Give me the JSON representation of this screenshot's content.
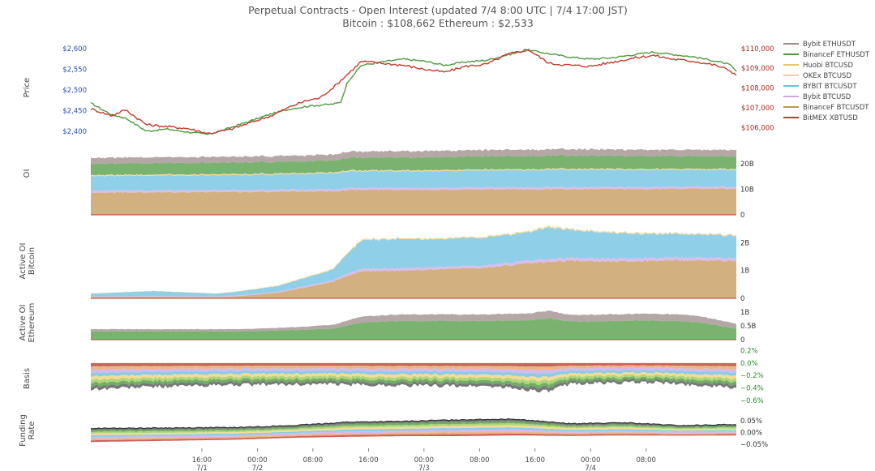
{
  "chart_data": {
    "type": "area",
    "title": "Perpetual Contracts - Open Interest   (updated   7/4 8:00 UTC   |   7/4 17:00 JST)",
    "subtitle": "Bitcoin : $108,662    Ethereum : $2,533",
    "x_ticks": [
      {
        "time": "16:00",
        "date": "7/1"
      },
      {
        "time": "00:00",
        "date": "7/2"
      },
      {
        "time": "08:00",
        "date": ""
      },
      {
        "time": "16:00",
        "date": ""
      },
      {
        "time": "00:00",
        "date": "7/3"
      },
      {
        "time": "08:00",
        "date": ""
      },
      {
        "time": "16:00",
        "date": ""
      },
      {
        "time": "00:00",
        "date": "7/4"
      },
      {
        "time": "08:00",
        "date": ""
      }
    ],
    "x_range_hours": [
      -21,
      72
    ],
    "legend": {
      "placement": "right",
      "entries": [
        {
          "name": "Bybit ETHUSDT",
          "color": "#9e8a8a"
        },
        {
          "name": "BinanceF ETHUSDT",
          "color": "#4e9a3f"
        },
        {
          "name": "Huobi BTCUSD",
          "color": "#e3c86a"
        },
        {
          "name": "OKEx BTCUSD",
          "color": "#f2d27a"
        },
        {
          "name": "BYBIT BTCUSDT",
          "color": "#6bbfe0"
        },
        {
          "name": "Bybit BTCUSD",
          "color": "#c9a8e6"
        },
        {
          "name": "BinanceF BTCUSDT",
          "color": "#c49656"
        },
        {
          "name": "BitMEX XBTUSD",
          "color": "#c23b2e"
        }
      ]
    },
    "panels": [
      {
        "id": "price",
        "ylabel": "Price",
        "left_axis": {
          "ticks": [
            "$2,400",
            "$2,450",
            "$2,500",
            "$2,550",
            "$2,600"
          ],
          "values": [
            2400,
            2450,
            2500,
            2550,
            2600
          ],
          "range": [
            2380,
            2620
          ],
          "color": "#2a4fb0"
        },
        "right_axis": {
          "ticks": [
            "$106,000",
            "$107,000",
            "$108,000",
            "$109,000",
            "$110,000"
          ],
          "values": [
            106000,
            107000,
            108000,
            109000,
            110000
          ],
          "range": [
            105400,
            110400
          ],
          "color": "#a32a1e"
        },
        "series": [
          {
            "name": "Ethereum",
            "color": "#4e9a3f",
            "axis": "left",
            "x": [
              -21,
              -18,
              -16,
              -13,
              -10,
              -7,
              -4,
              -1,
              2,
              5,
              8,
              11,
              14,
              15,
              16,
              18,
              21,
              24,
              27,
              30,
              33,
              36,
              39,
              42,
              45,
              48,
              51,
              54,
              57,
              60,
              63,
              66,
              69,
              71,
              72
            ],
            "y": [
              2468,
              2440,
              2432,
              2400,
              2405,
              2398,
              2392,
              2408,
              2425,
              2442,
              2455,
              2462,
              2466,
              2470,
              2520,
              2560,
              2568,
              2575,
              2570,
              2560,
              2568,
              2572,
              2585,
              2597,
              2588,
              2580,
              2575,
              2578,
              2585,
              2592,
              2586,
              2580,
              2570,
              2562,
              2545
            ]
          },
          {
            "name": "Bitcoin",
            "color": "#c23b2e",
            "axis": "right",
            "x": [
              -21,
              -18,
              -16,
              -13,
              -10,
              -7,
              -4,
              -1,
              2,
              5,
              8,
              10,
              12,
              14,
              16,
              18,
              21,
              24,
              27,
              30,
              33,
              36,
              39,
              42,
              45,
              48,
              51,
              54,
              57,
              60,
              63,
              66,
              69,
              71,
              72
            ],
            "y": [
              106950,
              106600,
              106900,
              106150,
              106050,
              105950,
              105700,
              105900,
              106250,
              106600,
              107100,
              107350,
              107500,
              108050,
              108700,
              109350,
              109250,
              109150,
              108950,
              108800,
              109100,
              109200,
              109700,
              109950,
              109250,
              109150,
              109100,
              109300,
              109500,
              109650,
              109450,
              109350,
              109150,
              108900,
              108650
            ]
          }
        ]
      },
      {
        "id": "oi",
        "ylabel": "OI",
        "right_axis": {
          "ticks": [
            "0",
            "10B",
            "20B"
          ],
          "values": [
            0,
            10,
            20
          ],
          "range": [
            0,
            25
          ],
          "unit": "B USD"
        },
        "stacked": true,
        "x": [
          -21,
          0,
          14,
          16,
          24,
          36,
          48,
          60,
          72
        ],
        "series": [
          {
            "name": "BinanceF BTCUSDT",
            "values": [
              8.7,
              8.9,
              9.2,
              9.7,
              9.8,
              9.9,
              10.0,
              10.1,
              10.2
            ]
          },
          {
            "name": "Bybit BTCUSD",
            "values": [
              0.8,
              0.8,
              0.8,
              0.8,
              0.8,
              0.8,
              0.8,
              0.8,
              0.8
            ]
          },
          {
            "name": "BYBIT BTCUSDT",
            "values": [
              5.7,
              5.8,
              6.2,
              6.4,
              6.5,
              6.6,
              6.8,
              6.6,
              6.5
            ]
          },
          {
            "name": "OKEx BTCUSD",
            "values": [
              0.4,
              0.4,
              0.4,
              0.4,
              0.4,
              0.4,
              0.4,
              0.4,
              0.4
            ]
          },
          {
            "name": "BinanceF ETHUSDT",
            "values": [
              4.4,
              4.5,
              4.6,
              4.9,
              5.0,
              5.1,
              5.1,
              5.0,
              4.9
            ]
          },
          {
            "name": "Bybit ETHUSDT",
            "values": [
              2.3,
              2.3,
              2.3,
              2.4,
              2.5,
              2.5,
              2.5,
              2.5,
              2.5
            ]
          }
        ]
      },
      {
        "id": "active_oi_btc",
        "ylabel": "Active OI",
        "ylabel2": "Bitcoin",
        "right_axis": {
          "ticks": [
            "0",
            "1B",
            "2B"
          ],
          "values": [
            0,
            1,
            2
          ],
          "range": [
            0,
            2.65
          ],
          "unit": "B USD"
        },
        "stacked": true,
        "x": [
          -21,
          -12,
          -3,
          0,
          6,
          10,
          13,
          14,
          16,
          18,
          24,
          30,
          36,
          42,
          45,
          48,
          54,
          60,
          66,
          72
        ],
        "series": [
          {
            "name": "BinanceF BTCUSDT",
            "values": [
              0.05,
              0.06,
              0.05,
              0.07,
              0.2,
              0.4,
              0.55,
              0.6,
              0.8,
              0.97,
              1.0,
              1.05,
              1.1,
              1.25,
              1.3,
              1.35,
              1.32,
              1.35,
              1.36,
              1.35
            ]
          },
          {
            "name": "Bybit BTCUSD",
            "values": [
              0.02,
              0.02,
              0.02,
              0.03,
              0.04,
              0.05,
              0.06,
              0.06,
              0.08,
              0.09,
              0.09,
              0.09,
              0.09,
              0.1,
              0.1,
              0.11,
              0.11,
              0.11,
              0.11,
              0.1
            ]
          },
          {
            "name": "BYBIT BTCUSDT",
            "values": [
              0.1,
              0.18,
              0.1,
              0.14,
              0.2,
              0.3,
              0.35,
              0.4,
              0.72,
              1.02,
              1.05,
              0.98,
              1.0,
              1.02,
              1.15,
              1.0,
              0.92,
              0.85,
              0.82,
              0.8
            ]
          },
          {
            "name": "OKEx BTCUSD",
            "values": [
              0.01,
              0.01,
              0.01,
              0.01,
              0.02,
              0.03,
              0.03,
              0.03,
              0.04,
              0.04,
              0.04,
              0.04,
              0.04,
              0.04,
              0.05,
              0.04,
              0.04,
              0.04,
              0.04,
              0.04
            ]
          }
        ]
      },
      {
        "id": "active_oi_eth",
        "ylabel": "Active OI",
        "ylabel2": "Ethereum",
        "right_axis": {
          "ticks": [
            "0",
            "0.5B",
            "1B"
          ],
          "values": [
            0,
            0.5,
            1
          ],
          "range": [
            0,
            1.15
          ],
          "unit": "B USD"
        },
        "stacked": true,
        "x": [
          -21,
          -12,
          0,
          8,
          14,
          18,
          24,
          36,
          42,
          45,
          48,
          60,
          66,
          72
        ],
        "series": [
          {
            "name": "BinanceF ETHUSDT",
            "values": [
              0.3,
              0.3,
              0.3,
              0.35,
              0.4,
              0.63,
              0.68,
              0.68,
              0.7,
              0.78,
              0.66,
              0.7,
              0.65,
              0.4
            ]
          },
          {
            "name": "Bybit ETHUSDT",
            "values": [
              0.08,
              0.08,
              0.08,
              0.1,
              0.14,
              0.22,
              0.24,
              0.24,
              0.25,
              0.28,
              0.24,
              0.25,
              0.24,
              0.18
            ]
          }
        ]
      },
      {
        "id": "basis",
        "ylabel": "Basis",
        "right_axis": {
          "ticks": [
            "−0.6%",
            "−0.4%",
            "−0.2%",
            "0.0%",
            "0.2%"
          ],
          "values": [
            -0.6,
            -0.4,
            -0.2,
            0.0,
            0.2
          ],
          "range": [
            -0.68,
            0.22
          ],
          "color": "#2e8a2e"
        },
        "x": [
          -21,
          -12,
          0,
          12,
          24,
          36,
          45,
          48,
          60,
          72
        ],
        "lower_envelope": [
          -0.42,
          -0.38,
          -0.35,
          -0.34,
          -0.36,
          -0.37,
          -0.46,
          -0.33,
          -0.31,
          -0.4
        ],
        "band_colors": [
          "#c23b2e",
          "#e8a26b",
          "#c9a8e6",
          "#6bbfe0",
          "#f2d27a",
          "#9ccc5a",
          "#4e9a3f",
          "#555555"
        ]
      },
      {
        "id": "funding",
        "ylabel": "Funding",
        "ylabel2": "Rate",
        "right_axis": {
          "ticks": [
            "−0.05%",
            "0.00%",
            "0.05%"
          ],
          "values": [
            -0.05,
            0,
            0.05
          ],
          "range": [
            -0.06,
            0.075
          ],
          "color": "#333333"
        },
        "x": [
          -21,
          -10,
          0,
          8,
          16,
          24,
          32,
          40,
          48,
          56,
          64,
          72
        ],
        "upper": [
          0.018,
          0.02,
          0.022,
          0.03,
          0.045,
          0.048,
          0.055,
          0.058,
          0.038,
          0.042,
          0.03,
          0.035
        ],
        "lower": [
          -0.04,
          -0.035,
          -0.03,
          -0.022,
          -0.018,
          -0.015,
          -0.015,
          -0.012,
          -0.014,
          -0.012,
          -0.013,
          -0.012
        ],
        "band_colors": [
          "#c23b2e",
          "#e8a26b",
          "#c9a8e6",
          "#6bbfe0",
          "#f2d27a",
          "#9ccc5a",
          "#4e9a3f",
          "#555555"
        ]
      }
    ]
  }
}
